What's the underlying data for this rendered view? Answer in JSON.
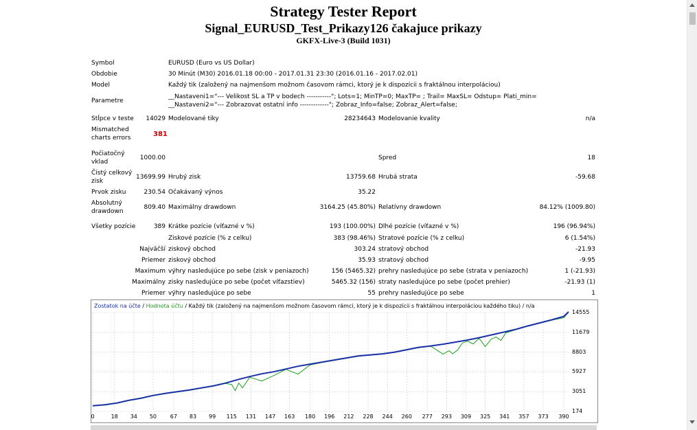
{
  "report": {
    "title": "Strategy Tester Report",
    "subtitle": "Signal_EURUSD_Test_Prikazy126 čakajuce prikazy",
    "server": "GKFX-Live-3 (Build 1031)"
  },
  "header_rows": {
    "symbol_label": "Symbol",
    "symbol_value": "EURUSD (Euro vs US Dollar)",
    "period_label": "Obdobie",
    "period_value": "30 Minút (M30) 2016.01.18 00:00 - 2017.01.31 23:30 (2016.01.16 - 2017.02.01)",
    "model_label": "Model",
    "model_value": "Každý tik (založený na najmenšom možnom časovom rámci, ktorý je k dispozícii s fraktálnou interpoláciou)",
    "params_label": "Parametre",
    "params_line1": "__Nastaveni1=\"--- Velikost SL a TP v bodech -----------\"; Lots=1; MinTP=0; MaxTP=        ; Trail=        MaxSL=           Odstup=        Plati_min=",
    "params_line2": "__Nastaveni2=\"--- Zobrazovat ostatní info -------------\"; Zobraz_Info=false; Zobraz_Alert=false;"
  },
  "stats": {
    "bars_label": "Stĺpce v teste",
    "bars_value": "14029",
    "ticks_label": "Modelované tiky",
    "ticks_value": "28234643",
    "quality_label": "Modelovanie kvality",
    "quality_value": "n/a",
    "mismatch_label_1": "Mismatched",
    "mismatch_label_2": "charts errors",
    "mismatch_value": "381",
    "deposit_label_1": "Počiatočný",
    "deposit_label_2": "vklad",
    "deposit_value": "1000.00",
    "spread_label": "Spred",
    "spread_value": "18",
    "net_label_1": "Čistý celkový",
    "net_label_2": "zisk",
    "net_value": "13699.99",
    "gross_profit_label": "Hrubý zisk",
    "gross_profit_value": "13759.68",
    "gross_loss_label": "Hrubá strata",
    "gross_loss_value": "-59.68",
    "pf_label": "Prvok zisku",
    "pf_value": "230.54",
    "expected_label": "Očakávaný výnos",
    "expected_value": "35.22",
    "abs_dd_label_1": "Absolutný",
    "abs_dd_label_2": "drawdown",
    "abs_dd_value": "809.40",
    "max_dd_label": "Maximálny drawdown",
    "max_dd_value": "3164.25 (45.80%)",
    "rel_dd_label": "Relatívny drawdown",
    "rel_dd_value": "84.12% (1009.80)",
    "all_pos_label": "Všetky pozície",
    "all_pos_value": "389",
    "short_label": "Krátke pozície (víťazné v %)",
    "short_value": "193 (100.00%)",
    "long_label": "Dlhé pozície (víťazné v %)",
    "long_value": "196 (96.94%)",
    "profit_pos_label": "Ziskové pozície (% z celku)",
    "profit_pos_value": "383 (98.46%)",
    "loss_pos_label": "Stratové pozície (% z celku)",
    "loss_pos_value": "6 (1.54%)",
    "largest_label_a": "Najväčší",
    "largest_label_b": "ziskový obchod",
    "largest_profit_value": "303.24",
    "largest_loss_label": "stratový obchod",
    "largest_loss_value": "-21.93",
    "avg_label_a": "Priemer",
    "avg_label_b": "ziskový obchod",
    "avg_profit_value": "35.93",
    "avg_loss_label": "stratový obchod",
    "avg_loss_value": "-9.95",
    "max_cons_label_a": "Maximum",
    "max_cons_label_b": "výhry nasledujúce po sebe (zisk v peniazoch)",
    "max_cons_wins_value": "156 (5465.32)",
    "max_cons_loss_label": "prehry nasledujúce po sebe (strata v peniazoch)",
    "max_cons_loss_value": "1 (-21.93)",
    "maximal_cons_label_a": "Maximálny",
    "maximal_cons_label_b": "zisky nasledujúce po sebe (počet víťazstiev)",
    "maximal_cons_profit_value": "5465.32 (156)",
    "maximal_cons_loss_label": "straty nasledujúce po sebe (počet prehier)",
    "maximal_cons_loss_value": "-21.93 (1)",
    "avg_cons_label_a": "Priemer",
    "avg_cons_label_b": "výhry nasledujúce po sebe",
    "avg_cons_wins_value": "55",
    "avg_cons_loss_label": "prehry nasledujúce po sebe",
    "avg_cons_loss_value": "1"
  },
  "chart_data": {
    "type": "line",
    "legend_balance": "Zostatok na účte",
    "legend_sep": "/",
    "legend_equity": "Hodnota účtu",
    "legend_rest": "/ Každý tik (založený na najmenšom možnom časovom rámci, ktorý je k dispozícii s fraktálnou interpoláciou každého tiku) / n/a",
    "y_ticks": [
      "14555",
      "11679",
      "8803",
      "5927",
      "3051",
      "174"
    ],
    "x_ticks": [
      "0",
      "18",
      "34",
      "50",
      "67",
      "83",
      "99",
      "115",
      "131",
      "147",
      "163",
      "180",
      "196",
      "212",
      "228",
      "244",
      "260",
      "277",
      "293",
      "309",
      "325",
      "341",
      "357",
      "373",
      "390"
    ],
    "ylim": [
      174,
      14555
    ],
    "xlim": [
      0,
      394
    ],
    "colors": {
      "balance": "#1a2fa8",
      "equity": "#18a018"
    },
    "series": [
      {
        "name": "Zostatok na účte",
        "x": [
          0,
          10,
          20,
          30,
          40,
          50,
          60,
          70,
          80,
          90,
          100,
          110,
          120,
          130,
          140,
          150,
          160,
          170,
          180,
          190,
          200,
          210,
          220,
          230,
          240,
          250,
          260,
          270,
          280,
          290,
          300,
          310,
          320,
          330,
          340,
          350,
          360,
          370,
          380,
          390,
          394
        ],
        "y": [
          1000,
          1150,
          1400,
          1800,
          2100,
          2500,
          2800,
          3050,
          3300,
          3600,
          3900,
          4300,
          4800,
          5250,
          5650,
          5950,
          6350,
          6750,
          7050,
          7350,
          7650,
          7950,
          8250,
          8400,
          8550,
          8800,
          9150,
          9500,
          9700,
          9950,
          10250,
          10550,
          10900,
          11300,
          11700,
          12100,
          12600,
          13050,
          13500,
          14000,
          14650
        ]
      },
      {
        "name": "Hodnota účtu",
        "x": [
          0,
          10,
          20,
          30,
          40,
          50,
          60,
          70,
          80,
          90,
          100,
          110,
          115,
          118,
          121,
          124,
          130,
          140,
          150,
          160,
          170,
          180,
          190,
          200,
          210,
          220,
          230,
          240,
          250,
          260,
          270,
          280,
          290,
          295,
          298,
          302,
          306,
          310,
          315,
          320,
          325,
          330,
          334,
          338,
          342,
          350,
          360,
          370,
          380,
          390,
          394
        ],
        "y": [
          1000,
          1100,
          1350,
          1750,
          2050,
          2450,
          2750,
          3000,
          3250,
          3550,
          3850,
          4250,
          4100,
          3200,
          4300,
          3600,
          5150,
          4600,
          5400,
          6300,
          5600,
          6950,
          7300,
          7600,
          7900,
          8200,
          8350,
          8500,
          8750,
          9100,
          9450,
          9650,
          8500,
          9000,
          8550,
          9100,
          10100,
          10400,
          10000,
          10800,
          9600,
          10700,
          11000,
          10500,
          11600,
          12050,
          12550,
          13000,
          13450,
          13800,
          14600
        ]
      }
    ]
  }
}
